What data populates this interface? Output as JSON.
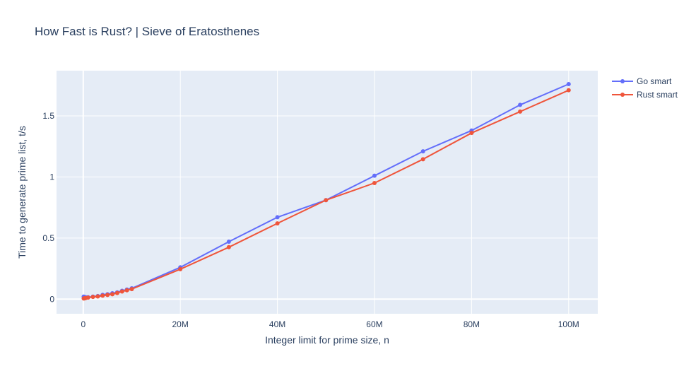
{
  "chart_data": {
    "type": "line",
    "title": "How Fast is Rust? | Sieve of Eratosthenes",
    "xlabel": "Integer limit for prime size, n",
    "ylabel": "Time to generate prime list, t/s",
    "xlim": [
      -5500000,
      106000000
    ],
    "ylim": [
      -0.12,
      1.87
    ],
    "xticks": [
      {
        "value": 0,
        "label": "0"
      },
      {
        "value": 20000000,
        "label": "20M"
      },
      {
        "value": 40000000,
        "label": "40M"
      },
      {
        "value": 60000000,
        "label": "60M"
      },
      {
        "value": 80000000,
        "label": "80M"
      },
      {
        "value": 100000000,
        "label": "100M"
      }
    ],
    "yticks": [
      {
        "value": 0,
        "label": "0"
      },
      {
        "value": 0.5,
        "label": "0.5"
      },
      {
        "value": 1,
        "label": "1"
      },
      {
        "value": 1.5,
        "label": "1.5"
      }
    ],
    "grid": true,
    "legend_position": "top-right",
    "series": [
      {
        "name": "Go smart",
        "color": "#636efa",
        "x": [
          100000,
          200000,
          300000,
          400000,
          500000,
          1000000,
          2000000,
          3000000,
          4000000,
          5000000,
          6000000,
          7000000,
          8000000,
          9000000,
          10000000,
          20000000,
          30000000,
          40000000,
          50000000,
          60000000,
          70000000,
          80000000,
          90000000,
          100000000
        ],
        "y": [
          0.02,
          0.015,
          0.015,
          0.015,
          0.015,
          0.015,
          0.02,
          0.025,
          0.035,
          0.04,
          0.048,
          0.055,
          0.068,
          0.078,
          0.088,
          0.26,
          0.47,
          0.67,
          0.81,
          1.01,
          1.21,
          1.38,
          1.59,
          1.76
        ]
      },
      {
        "name": "Rust smart",
        "color": "#ef553b",
        "x": [
          100000,
          200000,
          300000,
          400000,
          500000,
          1000000,
          2000000,
          3000000,
          4000000,
          5000000,
          6000000,
          7000000,
          8000000,
          9000000,
          10000000,
          20000000,
          30000000,
          40000000,
          50000000,
          60000000,
          70000000,
          80000000,
          90000000,
          100000000
        ],
        "y": [
          0.005,
          0.006,
          0.007,
          0.008,
          0.009,
          0.012,
          0.018,
          0.022,
          0.028,
          0.034,
          0.04,
          0.05,
          0.062,
          0.072,
          0.082,
          0.245,
          0.425,
          0.62,
          0.81,
          0.95,
          1.145,
          1.36,
          1.535,
          1.71
        ]
      }
    ]
  }
}
